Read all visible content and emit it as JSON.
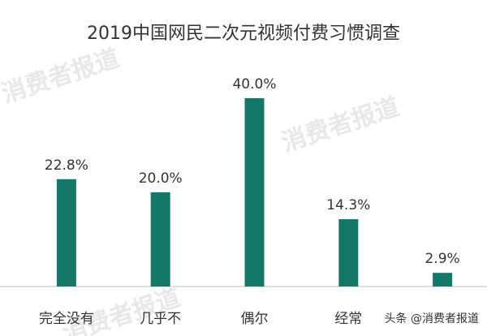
{
  "chart_data": {
    "type": "bar",
    "title": "2019中国网民二次元视频付费习惯调查",
    "categories": [
      "完全没有",
      "几乎不",
      "偶尔",
      "经常",
      null
    ],
    "values": [
      22.8,
      20.0,
      40.0,
      14.3,
      2.9
    ],
    "value_labels": [
      "22.8%",
      "20.0%",
      "40.0%",
      "14.3%",
      "2.9%"
    ],
    "color": "#137868",
    "watermark": "消费者报道",
    "source": "头条 @消费者报道"
  }
}
